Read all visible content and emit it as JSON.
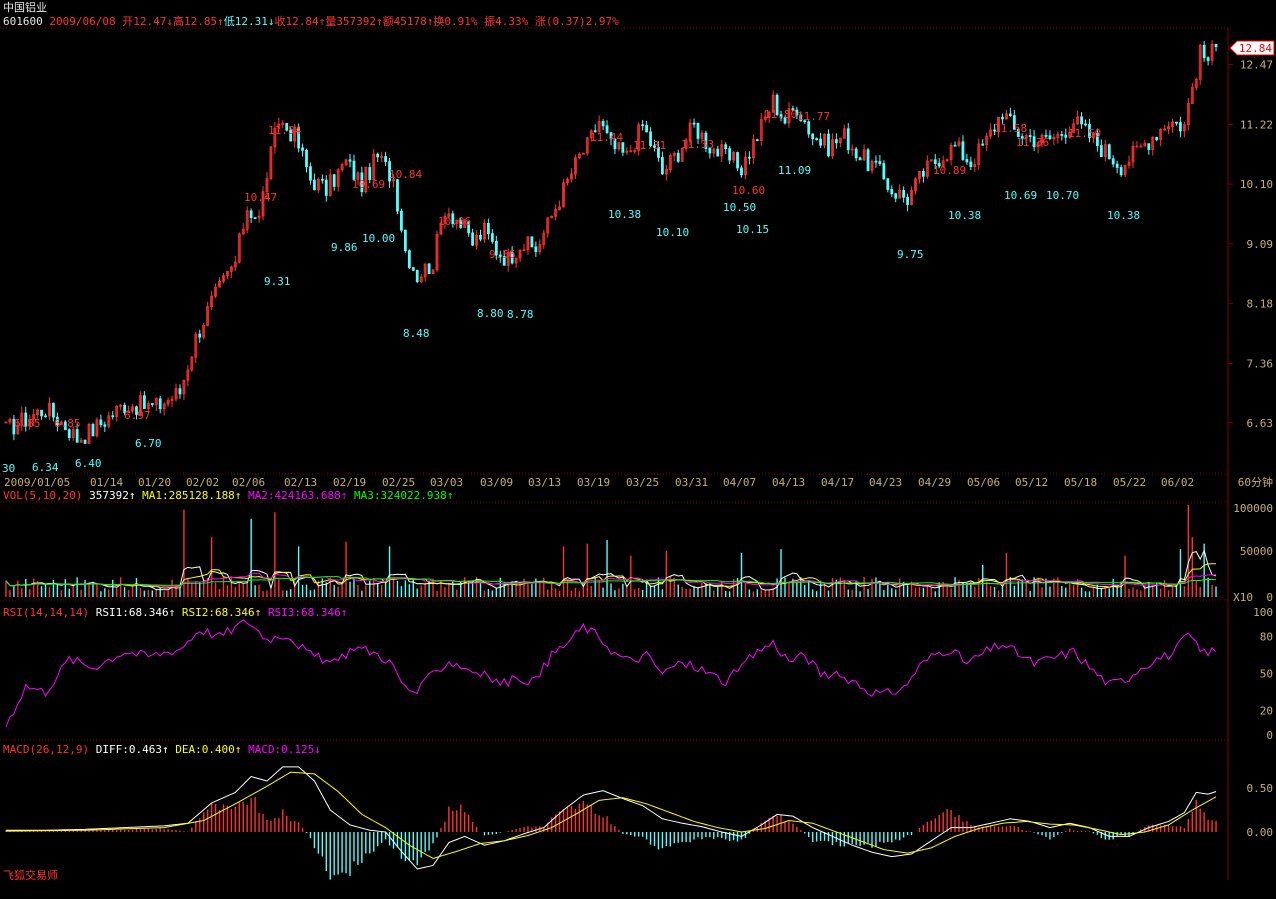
{
  "header": {
    "stock_name": "中国铝业",
    "stock_code": "601600",
    "date": "2009/06/08",
    "open": "开12.47↓",
    "high": "高12.85↑",
    "low": "低12.31↓",
    "close": "收12.84↑",
    "volume": "量357392↑",
    "amount": "额45178↑",
    "turnover": "换0.91%",
    "amplitude": "振4.33%",
    "change": "涨(0.37)2.97%"
  },
  "colors": {
    "up": "#ff3232",
    "down": "#54ffff",
    "axis_text": "#c8b070",
    "ma1": "#ffffff",
    "ma2": "#ffff00",
    "ma3": "#ff00ff",
    "ma4": "#00ff00",
    "grid_red": "#800000",
    "last_price_tag": "#ff0000"
  },
  "price_panel": {
    "current_price_tag": "12.84",
    "y_ticks": [
      "12.47",
      "11.22",
      "10.10",
      "9.09",
      "8.18",
      "7.36",
      "6.63"
    ],
    "high_labels": [
      "6.85",
      "6.85",
      "6.97",
      "10.47",
      "11.54",
      "10.69",
      "10.84",
      "10.06",
      "9.56",
      "11.44",
      "11.31",
      "11.33",
      "10.60",
      "11.80",
      "11.77",
      "10.89",
      "11.58",
      "11.36",
      "11.50"
    ],
    "low_labels": [
      "30",
      "6.34",
      "6.40",
      "6.70",
      "9.31",
      "9.86",
      "10.00",
      "8.48",
      "8.80",
      "8.78",
      "10.38",
      "10.10",
      "10.50",
      "10.15",
      "11.09",
      "9.75",
      "10.38",
      "10.69",
      "10.70",
      "10.38"
    ]
  },
  "x_axis": {
    "labels": [
      "2009/01/05",
      "01/14",
      "01/20",
      "02/02",
      "02/06",
      "02/13",
      "02/19",
      "02/25",
      "03/03",
      "03/09",
      "03/13",
      "03/19",
      "03/25",
      "03/31",
      "04/07",
      "04/13",
      "04/17",
      "04/23",
      "04/29",
      "05/06",
      "05/12",
      "05/18",
      "05/22",
      "06/02"
    ],
    "period": "60分钟"
  },
  "vol_panel": {
    "name": "VOL(5,10,20)",
    "value": "357392↑",
    "ma1": "MA1:285128.188↑",
    "ma2": "MA2:424163.688↑",
    "ma3": "MA3:324022.938↑",
    "y_ticks": [
      "100000",
      "50000",
      "0"
    ],
    "unit": "X10"
  },
  "rsi_panel": {
    "name": "RSI(14,14,14)",
    "rsi1": "RSI1:68.346↑",
    "rsi2": "RSI2:68.346↑",
    "rsi3": "RSI3:68.346↑",
    "y_ticks": [
      "100",
      "80",
      "50",
      "20",
      "0"
    ]
  },
  "macd_panel": {
    "name": "MACD(26,12,9)",
    "diff": "DIFF:0.463↑",
    "dea": "DEA:0.400↑",
    "macd": "MACD:0.125↓",
    "y_ticks": [
      "0.50",
      "0.00"
    ]
  },
  "footer": {
    "software": "飞狐交易师"
  },
  "chart_data": {
    "type": "candlestick",
    "scale": "log",
    "ylim": [
      6.1,
      13.3
    ],
    "anchors_close": [
      [
        0,
        6.55
      ],
      [
        10,
        6.8
      ],
      [
        15,
        6.6
      ],
      [
        18,
        6.45
      ],
      [
        22,
        6.55
      ],
      [
        30,
        6.85
      ],
      [
        38,
        6.82
      ],
      [
        44,
        7.0
      ],
      [
        48,
        7.7
      ],
      [
        52,
        8.2
      ],
      [
        58,
        8.8
      ],
      [
        61,
        9.7
      ],
      [
        64,
        9.5
      ],
      [
        66,
        10.3
      ],
      [
        69,
        11.3
      ],
      [
        73,
        11.0
      ],
      [
        77,
        10.2
      ],
      [
        81,
        10.0
      ],
      [
        86,
        10.5
      ],
      [
        90,
        10.1
      ],
      [
        94,
        10.6
      ],
      [
        98,
        10.2
      ],
      [
        101,
        9.0
      ],
      [
        104,
        8.6
      ],
      [
        108,
        8.8
      ],
      [
        111,
        9.7
      ],
      [
        114,
        9.5
      ],
      [
        118,
        9.1
      ],
      [
        121,
        9.3
      ],
      [
        124,
        9.0
      ],
      [
        127,
        8.85
      ],
      [
        130,
        9.1
      ],
      [
        134,
        9.0
      ],
      [
        137,
        9.4
      ],
      [
        141,
        10.0
      ],
      [
        145,
        10.6
      ],
      [
        147,
        10.8
      ],
      [
        150,
        11.3
      ],
      [
        153,
        10.8
      ],
      [
        157,
        10.6
      ],
      [
        161,
        11.2
      ],
      [
        164,
        10.7
      ],
      [
        166,
        10.3
      ],
      [
        170,
        10.7
      ],
      [
        174,
        11.2
      ],
      [
        178,
        10.8
      ],
      [
        182,
        10.6
      ],
      [
        186,
        10.4
      ],
      [
        190,
        11.0
      ],
      [
        194,
        11.7
      ],
      [
        197,
        11.3
      ],
      [
        200,
        11.6
      ],
      [
        204,
        11.0
      ],
      [
        208,
        10.8
      ],
      [
        212,
        11.0
      ],
      [
        216,
        10.6
      ],
      [
        220,
        10.4
      ],
      [
        224,
        10.0
      ],
      [
        228,
        9.85
      ],
      [
        232,
        10.3
      ],
      [
        236,
        10.6
      ],
      [
        240,
        10.8
      ],
      [
        244,
        10.5
      ],
      [
        248,
        10.9
      ],
      [
        252,
        11.5
      ],
      [
        255,
        11.1
      ],
      [
        258,
        11.0
      ],
      [
        262,
        10.9
      ],
      [
        266,
        11.0
      ],
      [
        270,
        11.3
      ],
      [
        274,
        11.0
      ],
      [
        278,
        10.7
      ],
      [
        282,
        10.45
      ],
      [
        286,
        10.7
      ],
      [
        290,
        11.0
      ],
      [
        294,
        11.3
      ],
      [
        298,
        11.2
      ],
      [
        300,
        12.0
      ],
      [
        302,
        12.7
      ],
      [
        304,
        12.6
      ],
      [
        306,
        12.84
      ]
    ],
    "volume_spikes": [
      [
        45,
        95
      ],
      [
        52,
        65
      ],
      [
        62,
        85
      ],
      [
        68,
        92
      ],
      [
        74,
        55
      ],
      [
        86,
        60
      ],
      [
        97,
        55
      ],
      [
        141,
        55
      ],
      [
        147,
        58
      ],
      [
        152,
        62
      ],
      [
        158,
        45
      ],
      [
        167,
        50
      ],
      [
        186,
        48
      ],
      [
        196,
        52
      ],
      [
        247,
        35
      ],
      [
        253,
        48
      ],
      [
        283,
        45
      ],
      [
        297,
        52
      ],
      [
        299,
        100
      ],
      [
        300,
        65
      ],
      [
        303,
        58
      ]
    ],
    "rsi_anchors": [
      [
        0,
        8
      ],
      [
        5,
        40
      ],
      [
        10,
        35
      ],
      [
        16,
        62
      ],
      [
        22,
        55
      ],
      [
        30,
        68
      ],
      [
        36,
        64
      ],
      [
        44,
        70
      ],
      [
        49,
        86
      ],
      [
        54,
        80
      ],
      [
        61,
        93
      ],
      [
        66,
        78
      ],
      [
        71,
        82
      ],
      [
        77,
        65
      ],
      [
        83,
        58
      ],
      [
        88,
        72
      ],
      [
        93,
        67
      ],
      [
        97,
        60
      ],
      [
        101,
        38
      ],
      [
        104,
        35
      ],
      [
        108,
        50
      ],
      [
        112,
        60
      ],
      [
        116,
        55
      ],
      [
        120,
        50
      ],
      [
        125,
        42
      ],
      [
        130,
        46
      ],
      [
        134,
        44
      ],
      [
        138,
        65
      ],
      [
        142,
        75
      ],
      [
        146,
        88
      ],
      [
        150,
        80
      ],
      [
        154,
        66
      ],
      [
        158,
        60
      ],
      [
        162,
        65
      ],
      [
        166,
        50
      ],
      [
        170,
        58
      ],
      [
        174,
        56
      ],
      [
        178,
        50
      ],
      [
        182,
        43
      ],
      [
        186,
        55
      ],
      [
        190,
        68
      ],
      [
        194,
        75
      ],
      [
        198,
        60
      ],
      [
        202,
        65
      ],
      [
        206,
        50
      ],
      [
        210,
        48
      ],
      [
        214,
        45
      ],
      [
        218,
        36
      ],
      [
        222,
        33
      ],
      [
        227,
        38
      ],
      [
        231,
        56
      ],
      [
        235,
        66
      ],
      [
        239,
        70
      ],
      [
        243,
        58
      ],
      [
        248,
        68
      ],
      [
        252,
        74
      ],
      [
        256,
        66
      ],
      [
        260,
        58
      ],
      [
        265,
        63
      ],
      [
        270,
        68
      ],
      [
        275,
        52
      ],
      [
        279,
        41
      ],
      [
        283,
        45
      ],
      [
        287,
        55
      ],
      [
        291,
        62
      ],
      [
        295,
        66
      ],
      [
        299,
        82
      ],
      [
        302,
        68
      ],
      [
        306,
        68
      ]
    ],
    "diff_anchors": [
      [
        0,
        0.02
      ],
      [
        10,
        0.02
      ],
      [
        20,
        0.03
      ],
      [
        30,
        0.05
      ],
      [
        40,
        0.07
      ],
      [
        46,
        0.1
      ],
      [
        52,
        0.33
      ],
      [
        58,
        0.45
      ],
      [
        62,
        0.63
      ],
      [
        66,
        0.58
      ],
      [
        70,
        0.74
      ],
      [
        74,
        0.74
      ],
      [
        78,
        0.58
      ],
      [
        82,
        0.25
      ],
      [
        87,
        0.08
      ],
      [
        92,
        0.02
      ],
      [
        96,
        0.0
      ],
      [
        100,
        -0.22
      ],
      [
        104,
        -0.42
      ],
      [
        108,
        -0.38
      ],
      [
        112,
        -0.12
      ],
      [
        116,
        -0.05
      ],
      [
        121,
        -0.15
      ],
      [
        126,
        -0.1
      ],
      [
        131,
        -0.02
      ],
      [
        136,
        0.05
      ],
      [
        141,
        0.25
      ],
      [
        146,
        0.42
      ],
      [
        151,
        0.47
      ],
      [
        156,
        0.38
      ],
      [
        161,
        0.3
      ],
      [
        166,
        0.15
      ],
      [
        171,
        0.1
      ],
      [
        176,
        0.06
      ],
      [
        181,
        0.0
      ],
      [
        186,
        -0.05
      ],
      [
        191,
        0.08
      ],
      [
        195,
        0.2
      ],
      [
        199,
        0.18
      ],
      [
        204,
        0.05
      ],
      [
        209,
        -0.05
      ],
      [
        214,
        -0.15
      ],
      [
        219,
        -0.23
      ],
      [
        224,
        -0.28
      ],
      [
        229,
        -0.25
      ],
      [
        234,
        -0.1
      ],
      [
        239,
        0.05
      ],
      [
        244,
        0.05
      ],
      [
        249,
        0.1
      ],
      [
        254,
        0.15
      ],
      [
        259,
        0.12
      ],
      [
        264,
        0.05
      ],
      [
        269,
        0.1
      ],
      [
        274,
        0.05
      ],
      [
        279,
        -0.05
      ],
      [
        284,
        -0.05
      ],
      [
        289,
        0.05
      ],
      [
        294,
        0.12
      ],
      [
        298,
        0.22
      ],
      [
        301,
        0.45
      ],
      [
        304,
        0.43
      ],
      [
        306,
        0.46
      ]
    ],
    "dea_anchors": [
      [
        0,
        0.01
      ],
      [
        20,
        0.02
      ],
      [
        40,
        0.05
      ],
      [
        50,
        0.13
      ],
      [
        58,
        0.32
      ],
      [
        66,
        0.52
      ],
      [
        72,
        0.68
      ],
      [
        78,
        0.66
      ],
      [
        84,
        0.46
      ],
      [
        90,
        0.2
      ],
      [
        96,
        0.05
      ],
      [
        102,
        -0.15
      ],
      [
        108,
        -0.3
      ],
      [
        114,
        -0.22
      ],
      [
        120,
        -0.13
      ],
      [
        126,
        -0.1
      ],
      [
        132,
        -0.04
      ],
      [
        138,
        0.05
      ],
      [
        144,
        0.2
      ],
      [
        150,
        0.36
      ],
      [
        156,
        0.39
      ],
      [
        162,
        0.32
      ],
      [
        168,
        0.22
      ],
      [
        174,
        0.12
      ],
      [
        180,
        0.05
      ],
      [
        186,
        0.0
      ],
      [
        192,
        0.04
      ],
      [
        198,
        0.13
      ],
      [
        204,
        0.1
      ],
      [
        210,
        0.0
      ],
      [
        216,
        -0.1
      ],
      [
        222,
        -0.2
      ],
      [
        228,
        -0.24
      ],
      [
        234,
        -0.18
      ],
      [
        240,
        -0.05
      ],
      [
        246,
        0.04
      ],
      [
        252,
        0.1
      ],
      [
        258,
        0.12
      ],
      [
        264,
        0.09
      ],
      [
        270,
        0.08
      ],
      [
        276,
        0.03
      ],
      [
        282,
        -0.03
      ],
      [
        288,
        0.0
      ],
      [
        294,
        0.08
      ],
      [
        300,
        0.25
      ],
      [
        306,
        0.4
      ]
    ],
    "count": 307
  }
}
